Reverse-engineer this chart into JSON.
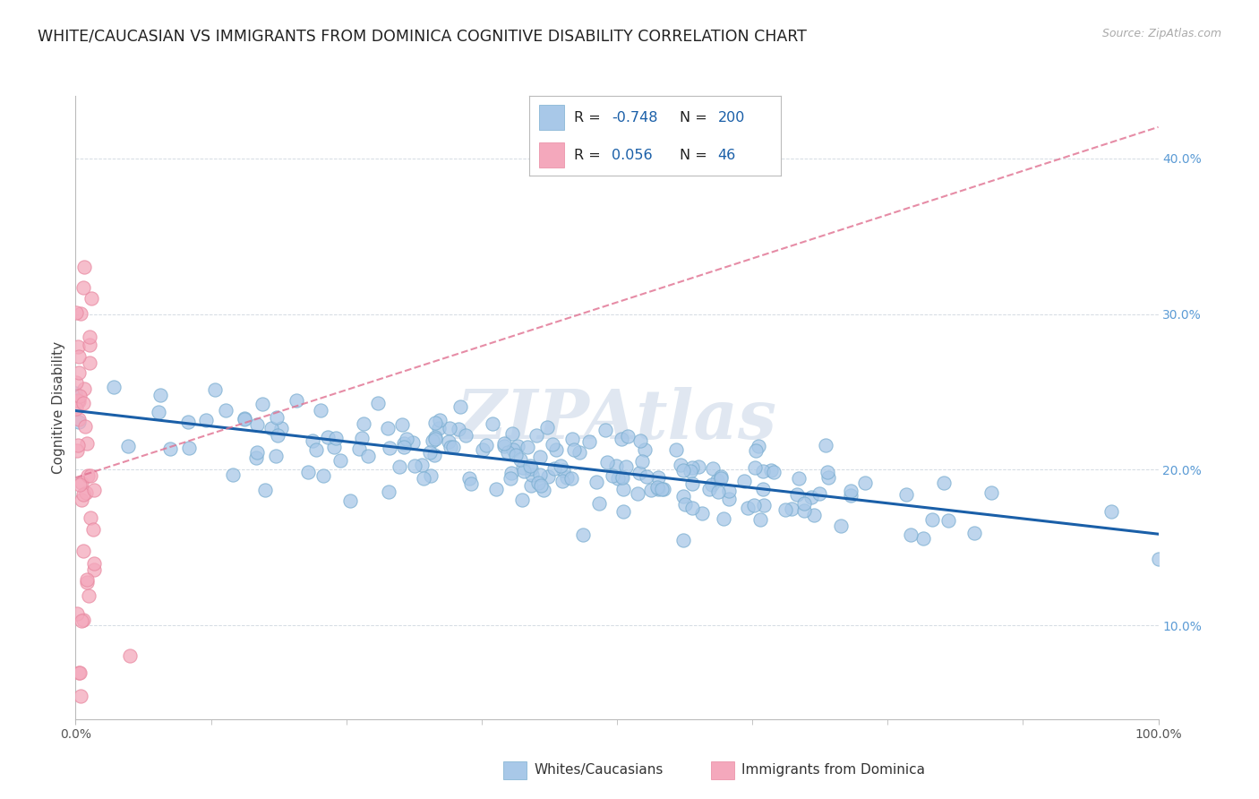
{
  "title": "WHITE/CAUCASIAN VS IMMIGRANTS FROM DOMINICA COGNITIVE DISABILITY CORRELATION CHART",
  "source": "Source: ZipAtlas.com",
  "ylabel": "Cognitive Disability",
  "legend_labels": [
    "Whites/Caucasians",
    "Immigrants from Dominica"
  ],
  "blue_R": -0.748,
  "blue_N": 200,
  "pink_R": 0.056,
  "pink_N": 46,
  "xlim": [
    0.0,
    1.0
  ],
  "ylim": [
    0.04,
    0.44
  ],
  "right_yticks": [
    0.1,
    0.2,
    0.3,
    0.4
  ],
  "right_ytick_labels": [
    "10.0%",
    "20.0%",
    "30.0%",
    "40.0%"
  ],
  "xticks": [
    0.0,
    1.0
  ],
  "xtick_labels": [
    "0.0%",
    "100.0%"
  ],
  "blue_color": "#a8c8e8",
  "pink_color": "#f4a8bc",
  "blue_scatter_edge": "#7aaed0",
  "pink_scatter_edge": "#e888a0",
  "blue_line_color": "#1a5fa8",
  "pink_line_color": "#e07090",
  "background_color": "#ffffff",
  "grid_color": "#d0d8e0",
  "watermark": "ZIPAtlas",
  "watermark_color": "#ccd8e8",
  "title_fontsize": 12.5,
  "ylabel_fontsize": 11,
  "tick_fontsize": 10,
  "legend_fontsize": 11,
  "legend_R_color": "#1a5fa8",
  "legend_N_color": "#1a5fa8"
}
